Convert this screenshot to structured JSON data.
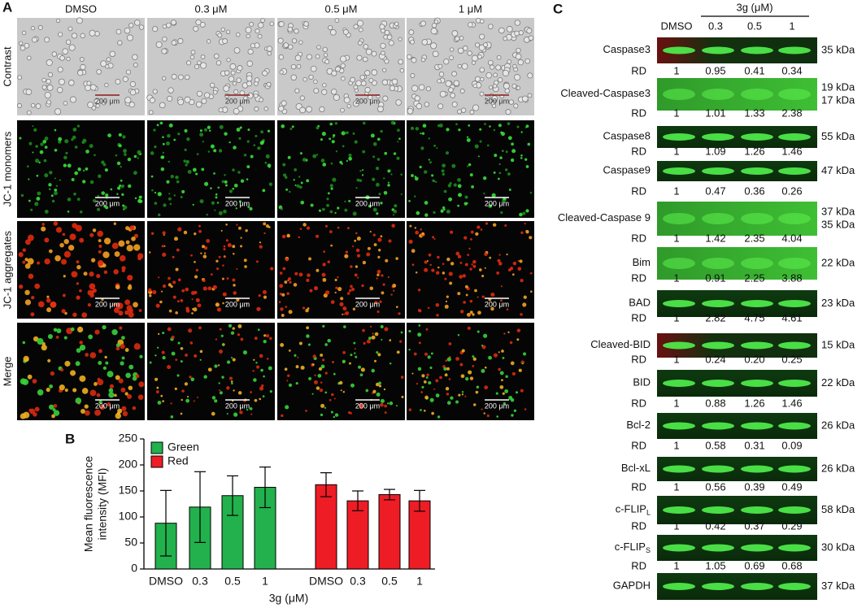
{
  "panel_labels": [
    "A",
    "B",
    "C"
  ],
  "panel_a": {
    "columns": [
      "DMSO",
      "0.3 μM",
      "0.5 μM",
      "1 μM"
    ],
    "rows": [
      "Contrast",
      "JC-1 monomers",
      "JC-1 aggregates",
      "Merge"
    ],
    "scale_bar": "200 μm"
  },
  "chart_data": {
    "type": "bar",
    "ylabel": [
      "Mean fluorescence",
      "intensity (MFI)"
    ],
    "xlabel": "3g (μM)",
    "categories": [
      "DMSO",
      "0.3",
      "0.5",
      "1",
      "DMSO",
      "0.3",
      "0.5",
      "1"
    ],
    "series": [
      {
        "name": "Green",
        "color": "#22b14c",
        "values": [
          88,
          119,
          141,
          157,
          null,
          null,
          null,
          null
        ],
        "errors": [
          63,
          68,
          38,
          39,
          null,
          null,
          null,
          null
        ]
      },
      {
        "name": "Red",
        "color": "#ee1c25",
        "values": [
          null,
          null,
          null,
          null,
          162,
          131,
          143,
          131
        ],
        "errors": [
          null,
          null,
          null,
          null,
          23,
          19,
          10,
          20
        ]
      }
    ],
    "ylim": [
      0,
      250
    ],
    "yticks": [
      0,
      50,
      100,
      150,
      200,
      250
    ],
    "legend": "upper-left"
  },
  "panel_c": {
    "treatment": "3g (μM)",
    "lanes": [
      "DMSO",
      "0.3",
      "0.5",
      "1"
    ],
    "rd_label": "RD",
    "blots": [
      {
        "label": "Caspase3",
        "sizes": [
          "35 kDa"
        ],
        "rd": [
          "1",
          "0.95",
          "0.41",
          "0.34"
        ]
      },
      {
        "label": "Cleaved-Caspase3",
        "sizes": [
          "19 kDa",
          "17 kDa"
        ],
        "rd": [
          "1",
          "1.01",
          "1.33",
          "2.38"
        ]
      },
      {
        "label": "Caspase8",
        "sizes": [
          "55 kDa"
        ],
        "rd": [
          "1",
          "1.09",
          "1.26",
          "1.46"
        ]
      },
      {
        "label": "Caspase9",
        "sizes": [
          "47 kDa"
        ],
        "rd": [
          "1",
          "0.47",
          "0.36",
          "0.26"
        ]
      },
      {
        "label": "Cleaved-Caspase 9",
        "sizes": [
          "37 kDa",
          "35 kDa"
        ],
        "rd": [
          "1",
          "1.42",
          "2.35",
          "4.04"
        ]
      },
      {
        "label": "Bim",
        "sizes": [
          "22 kDa"
        ],
        "rd": [
          "1",
          "0.91",
          "2.25",
          "3.88"
        ]
      },
      {
        "label": "BAD",
        "sizes": [
          "23 kDa"
        ],
        "rd": [
          "1",
          "2.82",
          "4.75",
          "4.61"
        ]
      },
      {
        "label": "Cleaved-BID",
        "sizes": [
          "15 kDa"
        ],
        "rd": [
          "1",
          "0.24",
          "0.20",
          "0.25"
        ]
      },
      {
        "label": "BID",
        "sizes": [
          "22 kDa"
        ],
        "rd": [
          "1",
          "0.88",
          "1.26",
          "1.46"
        ]
      },
      {
        "label": "Bcl-2",
        "sizes": [
          "26 kDa"
        ],
        "rd": [
          "1",
          "0.58",
          "0.31",
          "0.09"
        ]
      },
      {
        "label": "Bcl-xL",
        "sizes": [
          "26 kDa"
        ],
        "rd": [
          "1",
          "0.56",
          "0.39",
          "0.49"
        ]
      },
      {
        "label": "c-FLIP",
        "sub": "L",
        "sizes": [
          "58 kDa"
        ],
        "rd": [
          "1",
          "0.42",
          "0.37",
          "0.29"
        ]
      },
      {
        "label": "c-FLIP",
        "sub": "S",
        "sizes": [
          "30 kDa"
        ],
        "rd": [
          "1",
          "1.05",
          "0.69",
          "0.68"
        ]
      },
      {
        "label": "GAPDH",
        "sizes": [
          "37 kDa"
        ]
      }
    ]
  }
}
